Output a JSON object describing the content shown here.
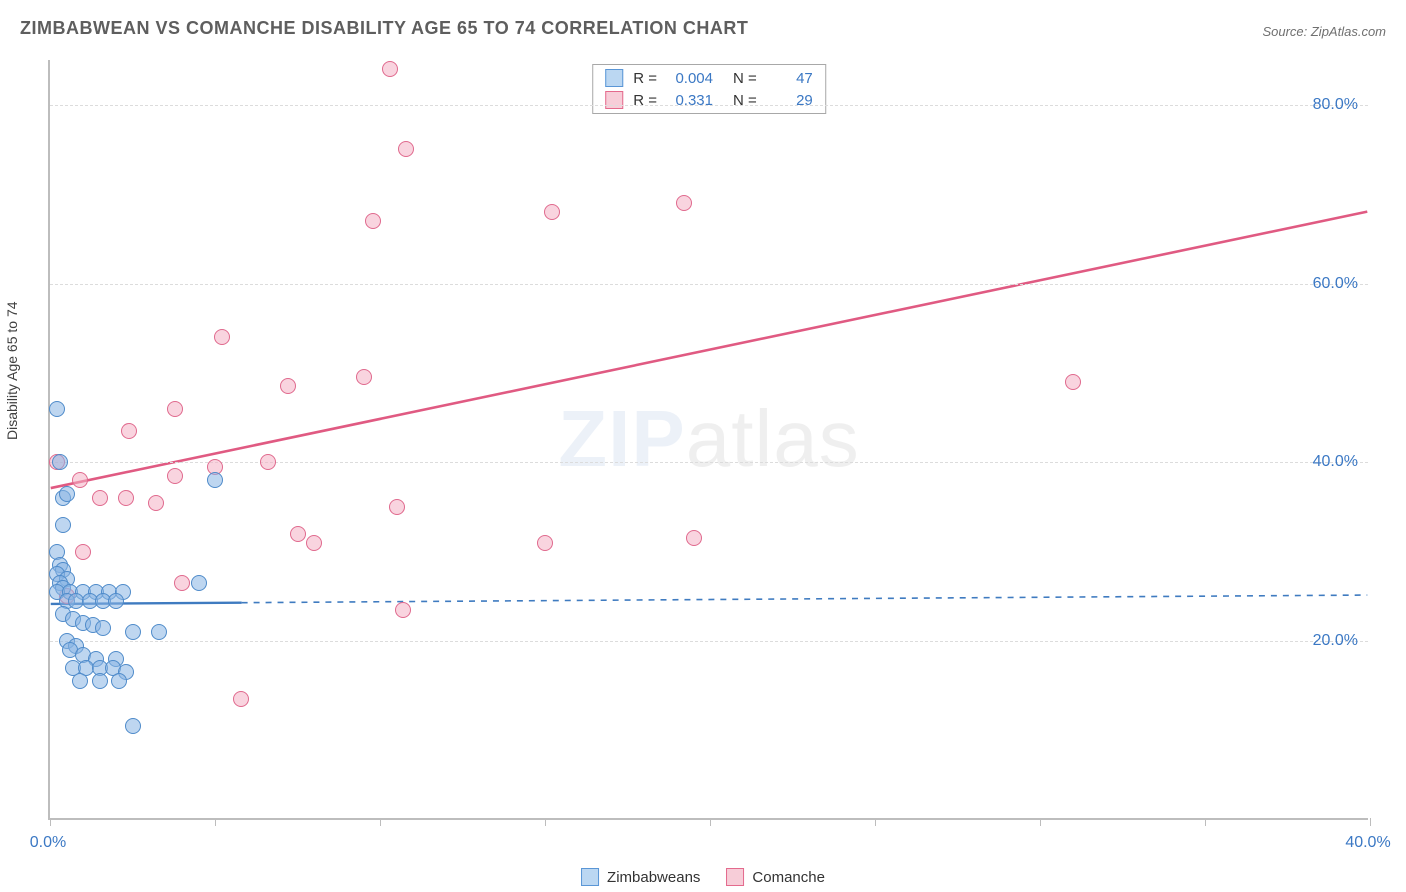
{
  "title": "ZIMBABWEAN VS COMANCHE DISABILITY AGE 65 TO 74 CORRELATION CHART",
  "source": "Source: ZipAtlas.com",
  "watermark": {
    "zip": "ZIP",
    "atlas": "atlas"
  },
  "y_axis": {
    "label": "Disability Age 65 to 74",
    "min": 0.0,
    "max": 85.0,
    "ticks": [
      20.0,
      40.0,
      60.0,
      80.0
    ],
    "tick_labels": [
      "20.0%",
      "40.0%",
      "60.0%",
      "80.0%"
    ],
    "tick_color": "#3b78c4",
    "grid_color": "#dcdcdc"
  },
  "x_axis": {
    "min": 0.0,
    "max": 40.0,
    "ticks": [
      0,
      5,
      10,
      15,
      20,
      25,
      30,
      35,
      40
    ],
    "end_labels": {
      "left": "0.0%",
      "right": "40.0%"
    },
    "tick_color": "#3b78c4"
  },
  "stats_legend": {
    "rows": [
      {
        "swatch_fill": "#bbd7f2",
        "swatch_border": "#5a96d6",
        "r_label": "R =",
        "r_value": "0.004",
        "n_label": "N =",
        "n_value": "47"
      },
      {
        "swatch_fill": "#f7cdd8",
        "swatch_border": "#e46a8d",
        "r_label": "R =",
        "r_value": "0.331",
        "n_label": "N =",
        "n_value": "29"
      }
    ]
  },
  "series_legend": {
    "items": [
      {
        "swatch_fill": "#bbd7f2",
        "swatch_border": "#5a96d6",
        "label": "Zimbabweans"
      },
      {
        "swatch_fill": "#f7cdd8",
        "swatch_border": "#e46a8d",
        "label": "Comanche"
      }
    ]
  },
  "series": {
    "zimbabweans": {
      "fill": "rgba(137,181,228,0.55)",
      "stroke": "#4f8bca",
      "marker_radius": 8,
      "trend": {
        "color": "#3f7bc0",
        "width": 2.4,
        "solid_until_x": 5.8,
        "y_at_xmin": 24.0,
        "y_at_xmax": 25.0
      },
      "points": [
        [
          0.2,
          46.0
        ],
        [
          0.3,
          40.0
        ],
        [
          0.4,
          36.0
        ],
        [
          0.5,
          36.5
        ],
        [
          0.4,
          33.0
        ],
        [
          0.2,
          30.0
        ],
        [
          0.3,
          28.5
        ],
        [
          0.4,
          28.0
        ],
        [
          0.2,
          27.5
        ],
        [
          0.5,
          27.0
        ],
        [
          0.3,
          26.5
        ],
        [
          0.4,
          26.0
        ],
        [
          0.2,
          25.5
        ],
        [
          0.6,
          25.5
        ],
        [
          1.0,
          25.5
        ],
        [
          1.4,
          25.5
        ],
        [
          1.8,
          25.5
        ],
        [
          2.2,
          25.5
        ],
        [
          0.5,
          24.5
        ],
        [
          0.8,
          24.5
        ],
        [
          1.2,
          24.5
        ],
        [
          1.6,
          24.5
        ],
        [
          2.0,
          24.5
        ],
        [
          4.5,
          26.5
        ],
        [
          0.4,
          23.0
        ],
        [
          0.7,
          22.5
        ],
        [
          1.0,
          22.0
        ],
        [
          1.3,
          21.8
        ],
        [
          1.6,
          21.5
        ],
        [
          2.5,
          21.0
        ],
        [
          3.3,
          21.0
        ],
        [
          0.5,
          20.0
        ],
        [
          0.8,
          19.5
        ],
        [
          0.6,
          19.0
        ],
        [
          1.0,
          18.5
        ],
        [
          1.4,
          18.0
        ],
        [
          2.0,
          18.0
        ],
        [
          0.7,
          17.0
        ],
        [
          1.1,
          17.0
        ],
        [
          1.5,
          17.0
        ],
        [
          1.9,
          17.0
        ],
        [
          2.3,
          16.5
        ],
        [
          0.9,
          15.5
        ],
        [
          1.5,
          15.5
        ],
        [
          2.1,
          15.5
        ],
        [
          2.5,
          10.5
        ],
        [
          5.0,
          38.0
        ]
      ]
    },
    "comanche": {
      "fill": "rgba(244,176,196,0.55)",
      "stroke": "#e06a8e",
      "marker_radius": 8,
      "trend": {
        "color": "#e05a82",
        "width": 2.6,
        "y_at_xmin": 37.0,
        "y_at_xmax": 68.0
      },
      "points": [
        [
          10.3,
          84.0
        ],
        [
          10.8,
          75.0
        ],
        [
          9.8,
          67.0
        ],
        [
          15.2,
          68.0
        ],
        [
          19.2,
          69.0
        ],
        [
          5.2,
          54.0
        ],
        [
          7.2,
          48.5
        ],
        [
          9.5,
          49.5
        ],
        [
          31.0,
          49.0
        ],
        [
          2.4,
          43.5
        ],
        [
          3.8,
          46.0
        ],
        [
          5.0,
          39.5
        ],
        [
          6.6,
          40.0
        ],
        [
          0.2,
          40.0
        ],
        [
          0.9,
          38.0
        ],
        [
          1.5,
          36.0
        ],
        [
          2.3,
          36.0
        ],
        [
          3.2,
          35.5
        ],
        [
          3.8,
          38.5
        ],
        [
          7.5,
          32.0
        ],
        [
          8.0,
          31.0
        ],
        [
          10.5,
          35.0
        ],
        [
          1.0,
          30.0
        ],
        [
          4.0,
          26.5
        ],
        [
          15.0,
          31.0
        ],
        [
          19.5,
          31.5
        ],
        [
          10.7,
          23.5
        ],
        [
          5.8,
          13.5
        ],
        [
          0.5,
          25.0
        ]
      ]
    }
  },
  "colors": {
    "axis": "#bdbdbd",
    "title": "#5e5e5e",
    "text": "#404040",
    "value": "#3b78c4"
  }
}
